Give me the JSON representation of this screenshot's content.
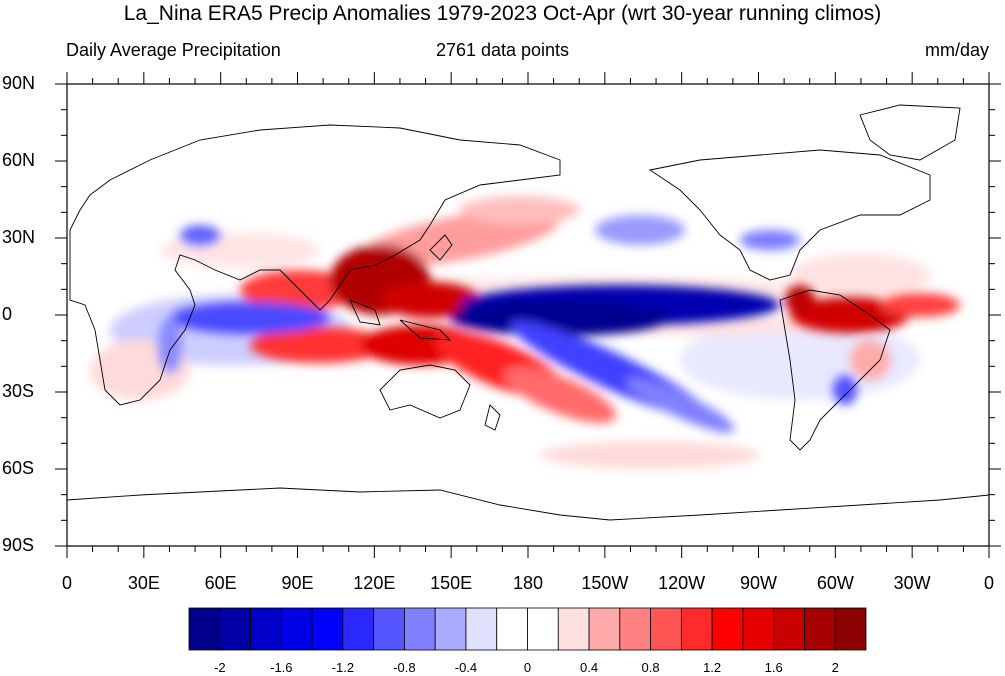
{
  "title": "La_Nina ERA5 Precip Anomalies 1979-2023 Oct-Apr (wrt 30-year running climos)",
  "subtitle_left": "Daily Average Precipitation",
  "subtitle_center": "2761 data points",
  "subtitle_right": "mm/day",
  "lat_labels": [
    "90N",
    "60N",
    "30N",
    "0",
    "30S",
    "60S",
    "90S"
  ],
  "lon_labels": [
    "0",
    "30E",
    "60E",
    "90E",
    "120E",
    "150E",
    "180",
    "150W",
    "120W",
    "90W",
    "60W",
    "30W",
    "0"
  ],
  "colorbar": {
    "colors": [
      "#00008b",
      "#0000a6",
      "#0000c8",
      "#0000e6",
      "#0000ff",
      "#2a2aff",
      "#5555ff",
      "#8080ff",
      "#aaaaff",
      "#e0e0ff",
      "#ffffff",
      "#ffffff",
      "#ffe0e0",
      "#ffaaaa",
      "#ff8080",
      "#ff5555",
      "#ff2a2a",
      "#ff0000",
      "#e60000",
      "#c80000",
      "#a60000",
      "#8b0000"
    ],
    "tick_labels": [
      "-2",
      "-1.6",
      "-1.2",
      "-0.8",
      "-0.4",
      "0",
      "0.4",
      "0.8",
      "1.2",
      "1.6",
      "2"
    ]
  }
}
